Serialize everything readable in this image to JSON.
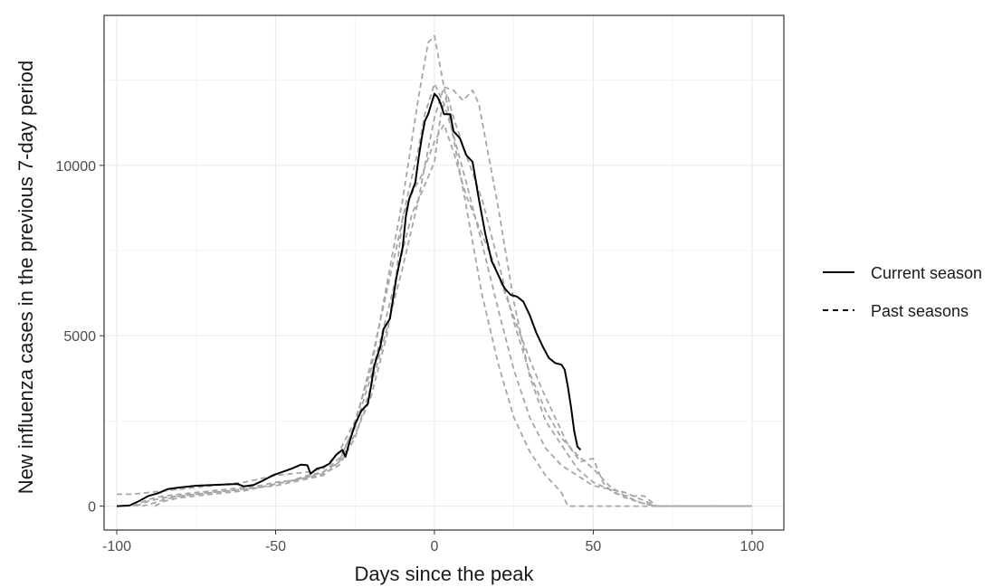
{
  "chart_data": {
    "type": "line",
    "title": "",
    "xlabel": "Days since the peak",
    "ylabel": "New influenza cases in the previous 7-day period",
    "xlim": [
      -104,
      110
    ],
    "ylim": [
      -700,
      14400
    ],
    "x_ticks": [
      -100,
      -50,
      0,
      50,
      100
    ],
    "x_tick_labels": [
      "-100",
      "-50",
      "0",
      "50",
      "100"
    ],
    "y_ticks": [
      0,
      5000,
      10000
    ],
    "y_tick_labels": [
      "0",
      "5000",
      "10000"
    ],
    "grid": true,
    "legend_position": "right",
    "legend": [
      {
        "label": "Current season",
        "style": "solid"
      },
      {
        "label": "Past seasons",
        "style": "dashed"
      }
    ],
    "series": [
      {
        "name": "Current season",
        "style": "solid",
        "color": "#000000",
        "points": [
          [
            -100,
            0
          ],
          [
            -96,
            20
          ],
          [
            -93,
            150
          ],
          [
            -90,
            300
          ],
          [
            -87,
            380
          ],
          [
            -84,
            500
          ],
          [
            -80,
            550
          ],
          [
            -75,
            600
          ],
          [
            -70,
            620
          ],
          [
            -65,
            640
          ],
          [
            -62,
            650
          ],
          [
            -60,
            580
          ],
          [
            -57,
            620
          ],
          [
            -54,
            750
          ],
          [
            -51,
            900
          ],
          [
            -48,
            1000
          ],
          [
            -45,
            1100
          ],
          [
            -42,
            1220
          ],
          [
            -40,
            1200
          ],
          [
            -39,
            950
          ],
          [
            -37,
            1100
          ],
          [
            -35,
            1150
          ],
          [
            -33,
            1250
          ],
          [
            -31,
            1500
          ],
          [
            -29,
            1650
          ],
          [
            -28,
            1450
          ],
          [
            -27,
            1800
          ],
          [
            -25,
            2400
          ],
          [
            -23,
            2800
          ],
          [
            -21,
            3000
          ],
          [
            -20,
            3500
          ],
          [
            -19,
            4100
          ],
          [
            -17,
            4700
          ],
          [
            -16,
            5200
          ],
          [
            -14,
            5500
          ],
          [
            -12,
            6700
          ],
          [
            -10,
            7600
          ],
          [
            -9,
            8500
          ],
          [
            -8,
            9000
          ],
          [
            -6,
            9500
          ],
          [
            -5,
            10200
          ],
          [
            -4,
            10800
          ],
          [
            -3,
            11300
          ],
          [
            -2,
            11500
          ],
          [
            -1,
            11800
          ],
          [
            0,
            12100
          ],
          [
            1,
            12000
          ],
          [
            2,
            11800
          ],
          [
            3,
            11500
          ],
          [
            5,
            11500
          ],
          [
            6,
            11000
          ],
          [
            8,
            10800
          ],
          [
            10,
            10300
          ],
          [
            12,
            10100
          ],
          [
            14,
            9000
          ],
          [
            16,
            8000
          ],
          [
            18,
            7200
          ],
          [
            20,
            6800
          ],
          [
            22,
            6400
          ],
          [
            24,
            6200
          ],
          [
            26,
            6150
          ],
          [
            28,
            6000
          ],
          [
            30,
            5600
          ],
          [
            32,
            5100
          ],
          [
            34,
            4700
          ],
          [
            36,
            4350
          ],
          [
            38,
            4200
          ],
          [
            40,
            4150
          ],
          [
            41,
            4000
          ],
          [
            42,
            3500
          ],
          [
            43,
            2900
          ],
          [
            44,
            2200
          ],
          [
            45,
            1750
          ],
          [
            46,
            1650
          ]
        ]
      },
      {
        "name": "Past seasons",
        "style": "dashed",
        "color": "#a6a6a6",
        "points": [
          [
            -100,
            350
          ],
          [
            -95,
            350
          ],
          [
            -90,
            400
          ],
          [
            -85,
            450
          ],
          [
            -80,
            500
          ],
          [
            -75,
            550
          ],
          [
            -70,
            600
          ],
          [
            -65,
            650
          ],
          [
            -60,
            700
          ],
          [
            -55,
            800
          ],
          [
            -50,
            900
          ],
          [
            -45,
            950
          ],
          [
            -40,
            1000
          ],
          [
            -35,
            1100
          ],
          [
            -30,
            1600
          ],
          [
            -25,
            2500
          ],
          [
            -20,
            4000
          ],
          [
            -15,
            6500
          ],
          [
            -10,
            9000
          ],
          [
            -5,
            12000
          ],
          [
            -2,
            13600
          ],
          [
            0,
            13800
          ],
          [
            3,
            12300
          ],
          [
            6,
            10800
          ],
          [
            10,
            8800
          ],
          [
            15,
            6200
          ],
          [
            20,
            4200
          ],
          [
            25,
            2600
          ],
          [
            30,
            1600
          ],
          [
            35,
            900
          ],
          [
            40,
            400
          ],
          [
            42,
            0
          ],
          [
            50,
            0
          ],
          [
            60,
            0
          ],
          [
            70,
            0
          ],
          [
            80,
            0
          ],
          [
            90,
            0
          ],
          [
            100,
            0
          ]
        ]
      },
      {
        "name": "Past seasons",
        "style": "dashed",
        "color": "#a6a6a6",
        "points": [
          [
            -95,
            0
          ],
          [
            -90,
            200
          ],
          [
            -85,
            300
          ],
          [
            -80,
            350
          ],
          [
            -75,
            400
          ],
          [
            -70,
            450
          ],
          [
            -65,
            500
          ],
          [
            -60,
            550
          ],
          [
            -55,
            600
          ],
          [
            -50,
            700
          ],
          [
            -45,
            750
          ],
          [
            -40,
            850
          ],
          [
            -35,
            950
          ],
          [
            -30,
            1200
          ],
          [
            -25,
            2000
          ],
          [
            -20,
            3500
          ],
          [
            -15,
            5200
          ],
          [
            -10,
            7000
          ],
          [
            -7,
            8200
          ],
          [
            -5,
            9000
          ],
          [
            -3,
            10000
          ],
          [
            0,
            11400
          ],
          [
            3,
            12300
          ],
          [
            6,
            12200
          ],
          [
            9,
            11900
          ],
          [
            12,
            12200
          ],
          [
            14,
            11800
          ],
          [
            16,
            10800
          ],
          [
            20,
            8800
          ],
          [
            25,
            6000
          ],
          [
            30,
            3800
          ],
          [
            35,
            2500
          ],
          [
            40,
            1800
          ],
          [
            45,
            1100
          ],
          [
            50,
            700
          ],
          [
            55,
            500
          ],
          [
            60,
            250
          ],
          [
            65,
            100
          ],
          [
            70,
            0
          ],
          [
            80,
            0
          ],
          [
            90,
            0
          ],
          [
            100,
            0
          ]
        ]
      },
      {
        "name": "Past seasons",
        "style": "dashed",
        "color": "#a6a6a6",
        "points": [
          [
            -92,
            0
          ],
          [
            -88,
            100
          ],
          [
            -85,
            200
          ],
          [
            -80,
            300
          ],
          [
            -75,
            350
          ],
          [
            -70,
            400
          ],
          [
            -65,
            450
          ],
          [
            -60,
            500
          ],
          [
            -55,
            550
          ],
          [
            -50,
            600
          ],
          [
            -45,
            700
          ],
          [
            -40,
            800
          ],
          [
            -35,
            900
          ],
          [
            -30,
            1300
          ],
          [
            -25,
            2400
          ],
          [
            -20,
            4200
          ],
          [
            -15,
            6300
          ],
          [
            -11,
            8000
          ],
          [
            -8,
            9300
          ],
          [
            -5,
            10500
          ],
          [
            -3,
            11500
          ],
          [
            0,
            12400
          ],
          [
            3,
            11800
          ],
          [
            6,
            10900
          ],
          [
            10,
            9500
          ],
          [
            15,
            7700
          ],
          [
            20,
            5800
          ],
          [
            25,
            4000
          ],
          [
            30,
            2600
          ],
          [
            35,
            1700
          ],
          [
            40,
            1200
          ],
          [
            45,
            900
          ],
          [
            50,
            600
          ],
          [
            55,
            500
          ],
          [
            60,
            400
          ],
          [
            65,
            200
          ],
          [
            70,
            0
          ],
          [
            80,
            0
          ],
          [
            90,
            0
          ],
          [
            100,
            0
          ]
        ]
      },
      {
        "name": "Past seasons",
        "style": "dashed",
        "color": "#a6a6a6",
        "points": [
          [
            -94,
            0
          ],
          [
            -90,
            150
          ],
          [
            -85,
            250
          ],
          [
            -80,
            300
          ],
          [
            -75,
            350
          ],
          [
            -70,
            400
          ],
          [
            -65,
            450
          ],
          [
            -60,
            500
          ],
          [
            -55,
            550
          ],
          [
            -50,
            650
          ],
          [
            -45,
            750
          ],
          [
            -40,
            850
          ],
          [
            -35,
            1000
          ],
          [
            -30,
            1400
          ],
          [
            -25,
            2300
          ],
          [
            -20,
            3800
          ],
          [
            -15,
            5600
          ],
          [
            -10,
            7500
          ],
          [
            -7,
            8600
          ],
          [
            -4,
            9200
          ],
          [
            0,
            10100
          ],
          [
            2,
            11500
          ],
          [
            4,
            12100
          ],
          [
            6,
            11400
          ],
          [
            10,
            10300
          ],
          [
            15,
            9000
          ],
          [
            20,
            7200
          ],
          [
            25,
            5400
          ],
          [
            30,
            3900
          ],
          [
            35,
            2800
          ],
          [
            40,
            2000
          ],
          [
            45,
            1500
          ],
          [
            50,
            1100
          ],
          [
            55,
            600
          ],
          [
            60,
            300
          ],
          [
            65,
            100
          ],
          [
            70,
            0
          ],
          [
            80,
            0
          ],
          [
            90,
            0
          ],
          [
            100,
            0
          ]
        ]
      },
      {
        "name": "Past seasons",
        "style": "dashed",
        "color": "#a6a6a6",
        "points": [
          [
            -88,
            0
          ],
          [
            -85,
            150
          ],
          [
            -80,
            250
          ],
          [
            -75,
            300
          ],
          [
            -70,
            350
          ],
          [
            -65,
            400
          ],
          [
            -60,
            450
          ],
          [
            -55,
            550
          ],
          [
            -50,
            650
          ],
          [
            -45,
            750
          ],
          [
            -40,
            900
          ],
          [
            -35,
            1000
          ],
          [
            -30,
            1300
          ],
          [
            -25,
            2100
          ],
          [
            -20,
            3200
          ],
          [
            -15,
            5000
          ],
          [
            -12,
            6800
          ],
          [
            -10,
            8500
          ],
          [
            -7,
            9200
          ],
          [
            -4,
            9700
          ],
          [
            -2,
            10200
          ],
          [
            0,
            10700
          ],
          [
            3,
            11200
          ],
          [
            6,
            10400
          ],
          [
            10,
            9100
          ],
          [
            14,
            8200
          ],
          [
            18,
            7300
          ],
          [
            22,
            6300
          ],
          [
            26,
            5300
          ],
          [
            30,
            4300
          ],
          [
            34,
            3400
          ],
          [
            38,
            2600
          ],
          [
            42,
            1800
          ],
          [
            46,
            1300
          ],
          [
            50,
            1400
          ],
          [
            53,
            700
          ],
          [
            56,
            400
          ],
          [
            60,
            300
          ],
          [
            66,
            300
          ],
          [
            70,
            0
          ],
          [
            80,
            0
          ],
          [
            90,
            0
          ],
          [
            100,
            0
          ]
        ]
      }
    ]
  }
}
